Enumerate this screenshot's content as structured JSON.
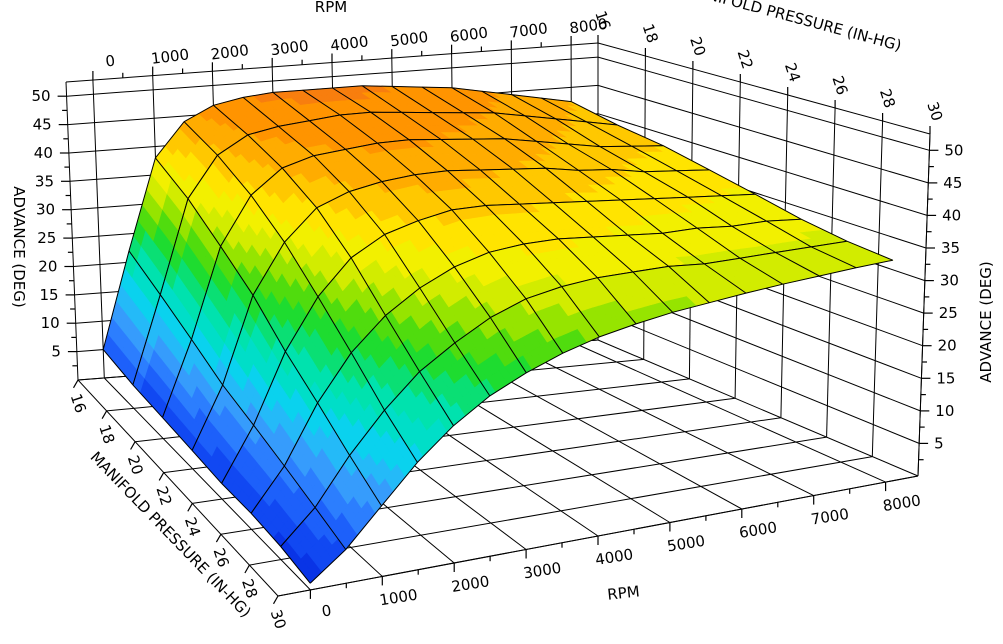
{
  "chart_data": {
    "type": "surface",
    "title": "",
    "axes": {
      "rpm": {
        "label": "RPM",
        "range": [
          0,
          8000
        ],
        "major_tick_step": 1000,
        "minor_tick_step": 500,
        "major_ticks": [
          0,
          1000,
          2000,
          3000,
          4000,
          5000,
          6000,
          7000,
          8000
        ],
        "tick_labels": [
          "0",
          "1000",
          "2000",
          "3000",
          "4000",
          "5000",
          "6000",
          "7000",
          "8000"
        ],
        "shown_on": [
          "top-back-edge",
          "bottom-front-edge"
        ]
      },
      "map": {
        "label": "MANIFOLD PRESSURE (IN-HG)",
        "range": [
          16,
          30
        ],
        "major_tick_step": 2,
        "major_ticks": [
          16,
          18,
          20,
          22,
          24,
          26,
          28,
          30
        ],
        "tick_labels": [
          "16",
          "18",
          "20",
          "22",
          "24",
          "26",
          "28",
          "30"
        ],
        "shown_on": [
          "top-right-edge",
          "bottom-left-edge"
        ]
      },
      "advance": {
        "label": "ADVANCE (DEG)",
        "range": [
          0,
          52.5
        ],
        "major_tick_step": 5,
        "minor_tick_step": 2.5,
        "major_ticks": [
          5,
          10,
          15,
          20,
          25,
          30,
          35,
          40,
          45,
          50
        ],
        "tick_labels": [
          "5",
          "10",
          "15",
          "20",
          "25",
          "30",
          "35",
          "40",
          "45",
          "50"
        ],
        "shown_on": [
          "left-vertical-edge",
          "right-vertical-edge"
        ]
      }
    },
    "rpm_points": [
      0,
      500,
      1000,
      1500,
      2000,
      2500,
      3000,
      3500,
      4000,
      4500,
      5000,
      5500,
      6000,
      6500,
      7000,
      7500,
      8000
    ],
    "map_points": [
      16,
      18,
      20,
      22,
      24,
      26,
      28,
      30
    ],
    "advance_values": [
      [
        5,
        22,
        38,
        44,
        46.5,
        47.5,
        48,
        48,
        48,
        48,
        47.5,
        47,
        46.5,
        45.5,
        44.5,
        43.5,
        42.5
      ],
      [
        4,
        19,
        35,
        42,
        45,
        46,
        46.5,
        47,
        47,
        46.5,
        46,
        45.5,
        45,
        44,
        43,
        42,
        41
      ],
      [
        3.5,
        16,
        31,
        39,
        43,
        44.5,
        45,
        45.5,
        45.5,
        45,
        44.5,
        44,
        43,
        42,
        41,
        40.5,
        40
      ],
      [
        3,
        13,
        27,
        35,
        40,
        42,
        43,
        43.5,
        43.5,
        43,
        42.5,
        42,
        41,
        40.5,
        39.5,
        39,
        38.5
      ],
      [
        2.5,
        11,
        22,
        30,
        35.5,
        38.5,
        40,
        41,
        41,
        40.5,
        40,
        39.5,
        39,
        38.5,
        38,
        37.5,
        37
      ],
      [
        2.5,
        9,
        18,
        25,
        30,
        33.5,
        36,
        37.5,
        38,
        38,
        37.5,
        37,
        36.5,
        36.5,
        36,
        36,
        35.5
      ],
      [
        2,
        7,
        14,
        20,
        25,
        28.5,
        31.5,
        33.5,
        34.5,
        35,
        35,
        35,
        34.5,
        34.5,
        34.5,
        34.5,
        34.5
      ],
      [
        1,
        5,
        10.5,
        16,
        20.5,
        24,
        26.5,
        28.5,
        30,
        31,
        31.8,
        32.3,
        32.8,
        33.2,
        33.5,
        33.8,
        34
      ]
    ],
    "colormap": {
      "band_size_deg": 2.5,
      "bands": [
        "#0934E6",
        "#1148F2",
        "#1D60FA",
        "#2C7EFE",
        "#369CFC",
        "#24BAF8",
        "#0AD2EE",
        "#00DEC8",
        "#00E2AE",
        "#0ADF74",
        "#1EDC30",
        "#50DC0E",
        "#96E400",
        "#D2EC00",
        "#F2F000",
        "#FFE400",
        "#FFC800",
        "#FFAC00",
        "#FF9400",
        "#F87E0E",
        "#F0681A"
      ]
    },
    "mesh_color": "#000000",
    "grid_color": "#000000",
    "background_color": "#ffffff",
    "grid": {
      "floor": true,
      "back_left_wall": true,
      "back_right_wall": true,
      "legend": false
    }
  }
}
